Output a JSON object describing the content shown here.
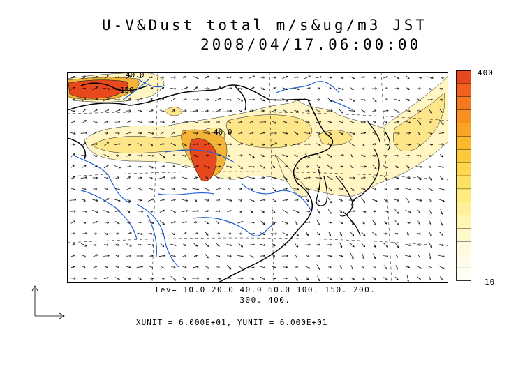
{
  "title": {
    "line1": "U-V&Dust total m/s&ug/m3 JST",
    "line2": "2008/04/17.06:00:00"
  },
  "contour_labels": [
    "40.0",
    "150",
    "40.0"
  ],
  "colorbar": {
    "max_label": "400",
    "min_label": "10",
    "colors": [
      "#e8481d",
      "#f0621e",
      "#f47a20",
      "#f79022",
      "#f9a425",
      "#fbb82a",
      "#fcc93a",
      "#fdd84d",
      "#fee264",
      "#ffeb7e",
      "#fff19a",
      "#fff5b5",
      "#fff8cb",
      "#fffadd",
      "#fffce9",
      "#fffef4"
    ]
  },
  "levels": {
    "line1": "lev= 10.0 20.0 40.0 60.0 100. 150. 200.",
    "line2": "300. 400."
  },
  "units_text": "XUNIT = 6.000E+01, YUNIT = 6.000E+01",
  "colors": {
    "coast": "#000000",
    "rivers": "#1f5fd6",
    "dust_low": "#fff6c4",
    "dust_mid": "#fde58a",
    "dust_high": "#f4b43a",
    "dust_peak": "#e8481d"
  }
}
